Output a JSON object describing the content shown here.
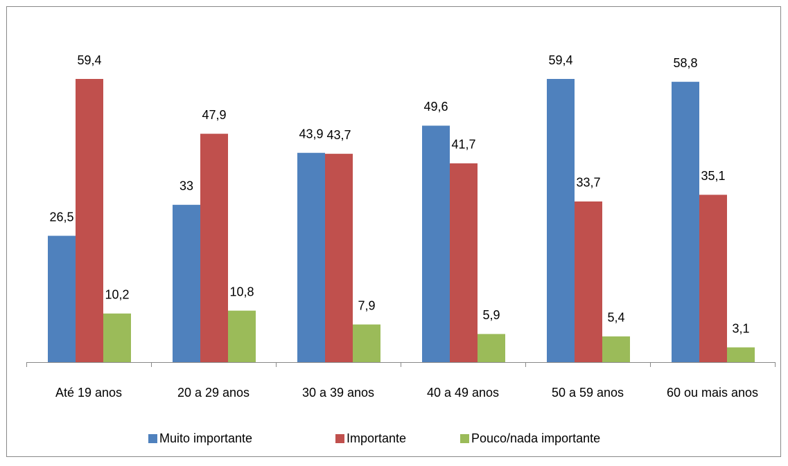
{
  "chart_data": {
    "type": "bar",
    "categories": [
      "Até 19 anos",
      "20 a 29 anos",
      "30 a 39 anos",
      "40 a 49 anos",
      "50 a 59 anos",
      "60 ou mais anos"
    ],
    "series": [
      {
        "name": "Muito importante",
        "color": "#4f81bd",
        "values": [
          26.5,
          33,
          43.9,
          49.6,
          59.4,
          58.8
        ],
        "value_labels": [
          "26,5",
          "33",
          "43,9",
          "49,6",
          "59,4",
          "58,8"
        ]
      },
      {
        "name": "Importante",
        "color": "#c0504d",
        "values": [
          59.4,
          47.9,
          43.7,
          41.7,
          33.7,
          35.1
        ],
        "value_labels": [
          "59,4",
          "47,9",
          "43,7",
          "41,7",
          "33,7",
          "35,1"
        ]
      },
      {
        "name": "Pouco/nada importante",
        "color": "#9bbb59",
        "values": [
          10.2,
          10.8,
          7.9,
          5.9,
          5.4,
          3.1
        ],
        "value_labels": [
          "10,2",
          "10,8",
          "7,9",
          "5,9",
          "5,4",
          "3,1"
        ]
      }
    ],
    "legend": "bottom"
  }
}
